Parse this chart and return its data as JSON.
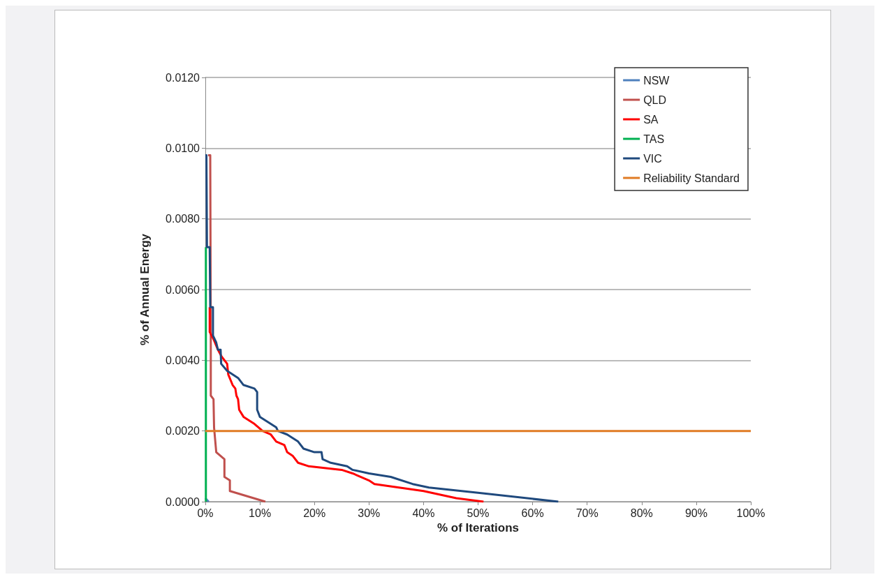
{
  "chart_data": {
    "type": "line",
    "xlabel": "% of Iterations",
    "ylabel": "% of Annual Energy",
    "xlim": [
      0,
      100
    ],
    "ylim": [
      0,
      0.012
    ],
    "xticks": [
      {
        "value": 0,
        "label": "0%"
      },
      {
        "value": 10,
        "label": "10%"
      },
      {
        "value": 20,
        "label": "20%"
      },
      {
        "value": 30,
        "label": "30%"
      },
      {
        "value": 40,
        "label": "40%"
      },
      {
        "value": 50,
        "label": "50%"
      },
      {
        "value": 60,
        "label": "60%"
      },
      {
        "value": 70,
        "label": "70%"
      },
      {
        "value": 80,
        "label": "80%"
      },
      {
        "value": 90,
        "label": "90%"
      },
      {
        "value": 100,
        "label": "100%"
      }
    ],
    "yticks": [
      {
        "value": 0,
        "label": "0.0000"
      },
      {
        "value": 0.002,
        "label": "0.0020"
      },
      {
        "value": 0.004,
        "label": "0.0040"
      },
      {
        "value": 0.006,
        "label": "0.0060"
      },
      {
        "value": 0.008,
        "label": "0.0080"
      },
      {
        "value": 0.01,
        "label": "0.0100"
      },
      {
        "value": 0.012,
        "label": "0.0120"
      }
    ],
    "grid": "y",
    "legend": "top right",
    "marker": "none",
    "line_style": "solid",
    "series": [
      {
        "name": "NSW",
        "color": "#4f81bd",
        "x": [
          0,
          0.6
        ],
        "values": [
          0.0001,
          0
        ]
      },
      {
        "name": "QLD",
        "color": "#c0504d",
        "x": [
          0.5,
          0.9,
          1.0,
          1.0,
          1.5,
          1.6,
          2,
          3.5,
          3.5,
          4.5,
          4.5,
          11
        ],
        "values": [
          0.0098,
          0.0098,
          0.0045,
          0.003,
          0.0029,
          0.0021,
          0.0014,
          0.0012,
          0.0007,
          0.0006,
          0.0003,
          0
        ]
      },
      {
        "name": "SA",
        "color": "#ff0000",
        "x": [
          0.8,
          0.8,
          1.5,
          2.3,
          3,
          4,
          4.2,
          5,
          5.5,
          5.7,
          6,
          6.2,
          7,
          9,
          10.5,
          12,
          13,
          14.5,
          15,
          16,
          17,
          19,
          25,
          27,
          30,
          31,
          40,
          46,
          51
        ],
        "values": [
          0.0055,
          0.0048,
          0.0046,
          0.0043,
          0.0041,
          0.0039,
          0.0036,
          0.0033,
          0.0032,
          0.003,
          0.0029,
          0.0026,
          0.0024,
          0.0022,
          0.002,
          0.0019,
          0.0017,
          0.0016,
          0.0014,
          0.0013,
          0.0011,
          0.001,
          0.0009,
          0.0008,
          0.0006,
          0.0005,
          0.0003,
          0.0001,
          0
        ]
      },
      {
        "name": "TAS",
        "color": "#00b050",
        "x": [
          0.1,
          0.1
        ],
        "values": [
          0.0072,
          0
        ]
      },
      {
        "name": "VIC",
        "color": "#1f497d",
        "x": [
          0,
          0.2,
          0.3,
          0.8,
          0.9,
          1.4,
          1.4,
          2,
          2.3,
          2.8,
          2.9,
          4,
          6,
          7,
          9,
          9.5,
          9.5,
          10,
          11,
          12,
          13,
          13.3,
          15,
          17,
          18,
          20,
          21.3,
          21.5,
          23,
          26,
          27,
          30,
          34,
          38,
          41,
          50,
          64.7
        ],
        "values": [
          0.0098,
          0.0098,
          0.0072,
          0.0072,
          0.0055,
          0.0055,
          0.0047,
          0.0045,
          0.0043,
          0.0043,
          0.0039,
          0.0037,
          0.0035,
          0.0033,
          0.0032,
          0.0031,
          0.0026,
          0.0024,
          0.0023,
          0.0022,
          0.0021,
          0.002,
          0.0019,
          0.0017,
          0.0015,
          0.0014,
          0.0014,
          0.0012,
          0.0011,
          0.001,
          0.0009,
          0.0008,
          0.0007,
          0.0005,
          0.0004,
          0.00025,
          0
        ]
      },
      {
        "name": "Reliability Standard",
        "color": "#e07b24",
        "x": [
          0,
          100
        ],
        "values": [
          0.002,
          0.002
        ]
      }
    ]
  }
}
